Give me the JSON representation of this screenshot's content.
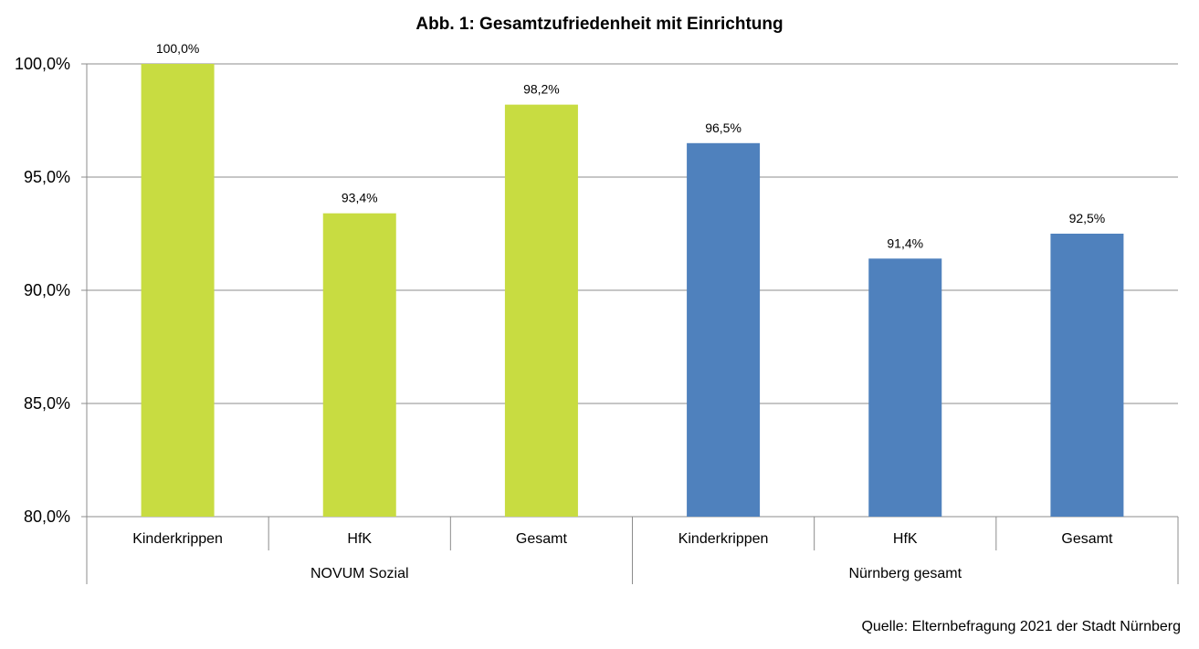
{
  "chart_data": {
    "type": "bar",
    "title": "Abb. 1: Gesamtzufriedenheit mit Einrichtung",
    "source": "Quelle: Elternbefragung 2021 der Stadt Nürnberg",
    "categories": [
      "Kinderkrippen",
      "HfK",
      "Gesamt",
      "Kinderkrippen",
      "HfK",
      "Gesamt"
    ],
    "groups": [
      {
        "name": "NOVUM Sozial",
        "start": 0,
        "count": 3,
        "color": "#c8dc41"
      },
      {
        "name": "Nürnberg gesamt",
        "start": 3,
        "count": 3,
        "color": "#4f81bd"
      }
    ],
    "values": [
      100.0,
      93.4,
      98.2,
      96.5,
      91.4,
      92.5
    ],
    "data_labels": [
      "100,0%",
      "93,4%",
      "98,2%",
      "96,5%",
      "91,4%",
      "92,5%"
    ],
    "ylim": [
      80,
      100
    ],
    "yticks": [
      80,
      85,
      90,
      95,
      100
    ],
    "ytick_labels": [
      "80,0%",
      "85,0%",
      "90,0%",
      "95,0%",
      "100,0%"
    ],
    "grid": true,
    "legend": "none"
  }
}
